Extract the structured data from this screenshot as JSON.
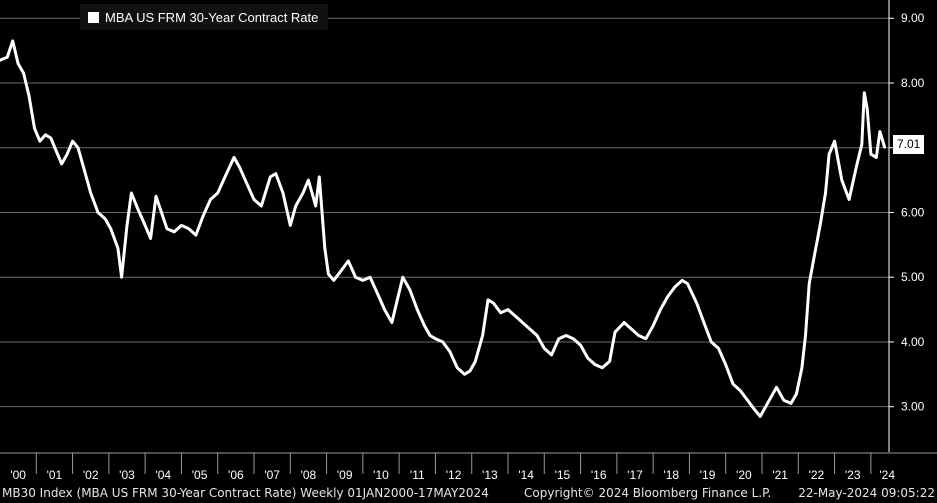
{
  "legend": {
    "label": "MBA US FRM 30-Year Contract Rate",
    "color": "#ffffff"
  },
  "last_value_label": "7.01",
  "footer": {
    "left": "MB30 Index (MBA US FRM 30-Year Contract Rate)  Weekly 01JAN2000-17MAY2024",
    "middle": "Copyright© 2024 Bloomberg Finance L.P.",
    "right": "22-May-2024 09:05:22"
  },
  "chart_data": {
    "type": "line",
    "title": "",
    "xlabel": "",
    "ylabel": "",
    "ylim": [
      2.3,
      9.05
    ],
    "xlim": [
      2000.0,
      2024.5
    ],
    "grid": true,
    "legend_position": "top-left",
    "y_ticks": [
      3,
      4,
      5,
      6,
      7,
      8,
      9
    ],
    "y_tick_labels": [
      "3.00",
      "4.00",
      "5.00",
      "6.00",
      "7.00",
      "8.00",
      "9.00"
    ],
    "x_tick_labels": [
      "'00",
      "'01",
      "'02",
      "'03",
      "'04",
      "'05",
      "'06",
      "'07",
      "'08",
      "'09",
      "'10",
      "'11",
      "'12",
      "'13",
      "'14",
      "'15",
      "'16",
      "'17",
      "'18",
      "'19",
      "'20",
      "'21",
      "'22",
      "'23",
      "'24"
    ],
    "series": [
      {
        "name": "MBA US FRM 30-Year Contract Rate",
        "color": "#ffffff",
        "x": [
          2000.0,
          2000.2,
          2000.35,
          2000.5,
          2000.65,
          2000.8,
          2000.95,
          2001.1,
          2001.25,
          2001.4,
          2001.55,
          2001.7,
          2001.85,
          2002.0,
          2002.15,
          2002.3,
          2002.5,
          2002.7,
          2002.9,
          2003.05,
          2003.25,
          2003.35,
          2003.5,
          2003.62,
          2003.8,
          2004.0,
          2004.15,
          2004.3,
          2004.45,
          2004.6,
          2004.8,
          2005.0,
          2005.2,
          2005.4,
          2005.6,
          2005.8,
          2006.0,
          2006.2,
          2006.45,
          2006.6,
          2006.8,
          2007.0,
          2007.2,
          2007.45,
          2007.6,
          2007.8,
          2008.0,
          2008.15,
          2008.35,
          2008.5,
          2008.7,
          2008.8,
          2008.95,
          2009.05,
          2009.2,
          2009.4,
          2009.6,
          2009.8,
          2010.0,
          2010.2,
          2010.4,
          2010.6,
          2010.8,
          2010.95,
          2011.1,
          2011.3,
          2011.5,
          2011.7,
          2011.85,
          2012.0,
          2012.2,
          2012.4,
          2012.6,
          2012.8,
          2012.95,
          2013.1,
          2013.3,
          2013.45,
          2013.6,
          2013.8,
          2014.0,
          2014.2,
          2014.4,
          2014.6,
          2014.8,
          2015.0,
          2015.2,
          2015.4,
          2015.6,
          2015.8,
          2016.0,
          2016.2,
          2016.4,
          2016.6,
          2016.8,
          2016.95,
          2017.2,
          2017.4,
          2017.6,
          2017.8,
          2018.0,
          2018.2,
          2018.4,
          2018.6,
          2018.8,
          2018.95,
          2019.2,
          2019.4,
          2019.6,
          2019.8,
          2020.0,
          2020.2,
          2020.4,
          2020.6,
          2020.8,
          2020.95,
          2021.2,
          2021.4,
          2021.6,
          2021.8,
          2021.95,
          2022.1,
          2022.2,
          2022.3,
          2022.45,
          2022.6,
          2022.75,
          2022.85,
          2023.0,
          2023.2,
          2023.4,
          2023.6,
          2023.75,
          2023.82,
          2023.9,
          2024.0,
          2024.15,
          2024.25,
          2024.38
        ],
        "values": [
          8.35,
          8.4,
          8.65,
          8.3,
          8.15,
          7.8,
          7.3,
          7.1,
          7.2,
          7.15,
          6.95,
          6.75,
          6.9,
          7.1,
          7.0,
          6.7,
          6.3,
          6.0,
          5.9,
          5.75,
          5.45,
          5.0,
          5.8,
          6.3,
          6.05,
          5.8,
          5.6,
          6.25,
          6.0,
          5.75,
          5.7,
          5.8,
          5.75,
          5.65,
          5.95,
          6.2,
          6.3,
          6.55,
          6.85,
          6.7,
          6.45,
          6.2,
          6.1,
          6.55,
          6.6,
          6.3,
          5.8,
          6.1,
          6.3,
          6.5,
          6.1,
          6.55,
          5.45,
          5.05,
          4.95,
          5.1,
          5.25,
          5.0,
          4.95,
          5.0,
          4.75,
          4.5,
          4.3,
          4.65,
          5.0,
          4.8,
          4.5,
          4.25,
          4.1,
          4.05,
          4.0,
          3.85,
          3.6,
          3.5,
          3.55,
          3.7,
          4.1,
          4.65,
          4.6,
          4.45,
          4.5,
          4.4,
          4.3,
          4.2,
          4.1,
          3.9,
          3.8,
          4.05,
          4.1,
          4.05,
          3.95,
          3.75,
          3.65,
          3.6,
          3.7,
          4.15,
          4.3,
          4.2,
          4.1,
          4.05,
          4.25,
          4.5,
          4.7,
          4.85,
          4.95,
          4.9,
          4.6,
          4.3,
          4.0,
          3.9,
          3.65,
          3.35,
          3.25,
          3.1,
          2.95,
          2.85,
          3.1,
          3.3,
          3.1,
          3.05,
          3.2,
          3.6,
          4.1,
          4.9,
          5.35,
          5.8,
          6.3,
          6.9,
          7.1,
          6.5,
          6.2,
          6.7,
          7.05,
          7.85,
          7.6,
          6.9,
          6.85,
          7.25,
          7.01
        ]
      }
    ]
  }
}
